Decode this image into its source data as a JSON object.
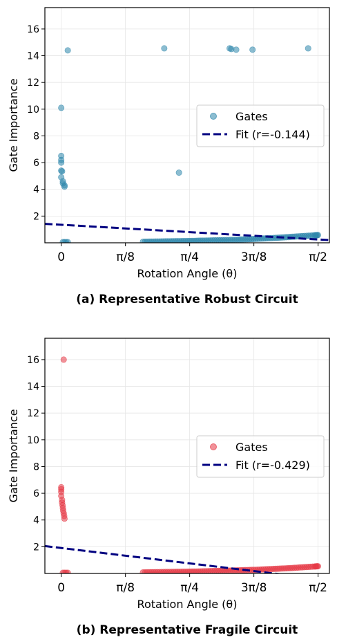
{
  "chart_data": [
    {
      "type": "scatter",
      "caption": "(a) Representative Robust Circuit",
      "xlabel": "Rotation Angle (θ)",
      "ylabel": "Gate Importance",
      "xlim": [
        -0.1,
        1.64
      ],
      "ylim": [
        0,
        17.6
      ],
      "xticks": [
        0,
        0.3927,
        0.7854,
        1.1781,
        1.5708
      ],
      "xtick_labels": [
        "0",
        "π/8",
        "π/4",
        "3π/8",
        "π/2"
      ],
      "yticks": [
        2,
        4,
        6,
        8,
        10,
        12,
        14,
        16
      ],
      "grid": true,
      "legend_position": "center-right",
      "color": "#2e86ab",
      "series": [
        {
          "name": "Gates",
          "points": [
            [
              0.04,
              14.4
            ],
            [
              0.63,
              14.55
            ],
            [
              1.03,
              14.55
            ],
            [
              1.04,
              14.5
            ],
            [
              1.07,
              14.45
            ],
            [
              1.17,
              14.45
            ],
            [
              1.51,
              14.55
            ],
            [
              0.0,
              10.1
            ],
            [
              0.0,
              6.5
            ],
            [
              0.0,
              6.2
            ],
            [
              0.0,
              6.0
            ],
            [
              0.0,
              5.4
            ],
            [
              0.005,
              5.35
            ],
            [
              0.0,
              4.9
            ],
            [
              0.01,
              4.6
            ],
            [
              0.01,
              4.45
            ],
            [
              0.02,
              4.3
            ],
            [
              0.02,
              4.2
            ],
            [
              0.72,
              5.25
            ],
            [
              0.01,
              0.05
            ],
            [
              0.02,
              0.05
            ],
            [
              0.03,
              0.05
            ],
            [
              0.04,
              0.05
            ],
            [
              0.5,
              0.08
            ],
            [
              0.55,
              0.09
            ],
            [
              0.6,
              0.1
            ],
            [
              0.65,
              0.11
            ],
            [
              0.7,
              0.12
            ],
            [
              0.75,
              0.13
            ],
            [
              0.8,
              0.14
            ],
            [
              0.85,
              0.16
            ],
            [
              0.9,
              0.17
            ],
            [
              0.95,
              0.19
            ],
            [
              1.0,
              0.2
            ],
            [
              1.05,
              0.22
            ],
            [
              1.1,
              0.25
            ],
            [
              1.15,
              0.27
            ],
            [
              1.2,
              0.3
            ],
            [
              1.25,
              0.33
            ],
            [
              1.3,
              0.36
            ],
            [
              1.35,
              0.4
            ],
            [
              1.4,
              0.44
            ],
            [
              1.45,
              0.48
            ],
            [
              1.5,
              0.52
            ],
            [
              1.55,
              0.56
            ],
            [
              1.57,
              0.58
            ]
          ]
        },
        {
          "name": "Fit (r=-0.144)",
          "line": [
            [
              -0.1,
              1.42
            ],
            [
              1.64,
              0.2
            ]
          ]
        }
      ]
    },
    {
      "type": "scatter",
      "caption": "(b) Representative Fragile Circuit",
      "xlabel": "Rotation Angle (θ)",
      "ylabel": "Gate Importance",
      "xlim": [
        -0.1,
        1.64
      ],
      "ylim": [
        0,
        17.6
      ],
      "xticks": [
        0,
        0.3927,
        0.7854,
        1.1781,
        1.5708
      ],
      "xtick_labels": [
        "0",
        "π/8",
        "π/4",
        "3π/8",
        "π/2"
      ],
      "yticks": [
        2,
        4,
        6,
        8,
        10,
        12,
        14,
        16
      ],
      "grid": true,
      "legend_position": "center-right",
      "color": "#e63946",
      "series": [
        {
          "name": "Gates",
          "points": [
            [
              0.015,
              16.0
            ],
            [
              0.0,
              6.45
            ],
            [
              0.0,
              6.3
            ],
            [
              0.0,
              6.1
            ],
            [
              0.0,
              5.8
            ],
            [
              0.005,
              5.5
            ],
            [
              0.005,
              5.3
            ],
            [
              0.008,
              5.1
            ],
            [
              0.01,
              4.9
            ],
            [
              0.012,
              4.7
            ],
            [
              0.015,
              4.5
            ],
            [
              0.018,
              4.3
            ],
            [
              0.02,
              4.1
            ],
            [
              0.01,
              0.05
            ],
            [
              0.02,
              0.05
            ],
            [
              0.03,
              0.05
            ],
            [
              0.04,
              0.05
            ],
            [
              0.5,
              0.08
            ],
            [
              0.55,
              0.09
            ],
            [
              0.6,
              0.1
            ],
            [
              0.65,
              0.11
            ],
            [
              0.7,
              0.12
            ],
            [
              0.75,
              0.13
            ],
            [
              0.8,
              0.14
            ],
            [
              0.85,
              0.15
            ],
            [
              0.9,
              0.17
            ],
            [
              0.95,
              0.19
            ],
            [
              1.0,
              0.2
            ],
            [
              1.05,
              0.22
            ],
            [
              1.1,
              0.24
            ],
            [
              1.15,
              0.26
            ],
            [
              1.2,
              0.28
            ],
            [
              1.25,
              0.31
            ],
            [
              1.3,
              0.34
            ],
            [
              1.35,
              0.37
            ],
            [
              1.4,
              0.4
            ],
            [
              1.45,
              0.44
            ],
            [
              1.5,
              0.48
            ],
            [
              1.55,
              0.52
            ],
            [
              1.57,
              0.54
            ]
          ]
        },
        {
          "name": "Fit (r=-0.429)",
          "line": [
            [
              -0.1,
              2.05
            ],
            [
              1.64,
              -0.5
            ]
          ]
        }
      ]
    }
  ],
  "fit_color": "#000080"
}
